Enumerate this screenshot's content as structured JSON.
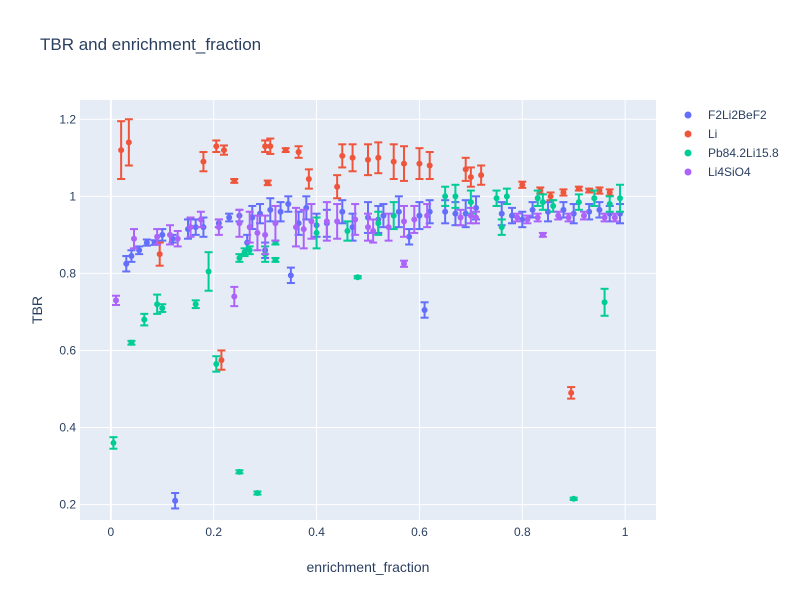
{
  "chart_data": {
    "type": "scatter",
    "title": "TBR and enrichment_fraction",
    "xlabel": "enrichment_fraction",
    "ylabel": "TBR",
    "xlim": [
      -0.06,
      1.06
    ],
    "ylim": [
      0.16,
      1.25
    ],
    "x_ticks": [
      0,
      0.2,
      0.4,
      0.6,
      0.8,
      1
    ],
    "x_tick_labels": [
      "0",
      "0.2",
      "0.4",
      "0.6",
      "0.8",
      "1"
    ],
    "y_ticks": [
      0.2,
      0.4,
      0.6,
      0.8,
      1.0,
      1.2
    ],
    "y_tick_labels": [
      "0.2",
      "0.4",
      "0.6",
      "0.8",
      "1",
      "1.2"
    ],
    "grid": true,
    "legend_position": "top-right",
    "error_bars": true,
    "series": [
      {
        "name": "F2Li2BeF2",
        "color": "#636efa",
        "points": [
          [
            0.03,
            0.825,
            0.02
          ],
          [
            0.04,
            0.845,
            0.015
          ],
          [
            0.055,
            0.86,
            0.01
          ],
          [
            0.07,
            0.88,
            0.008
          ],
          [
            0.085,
            0.88,
            0.006
          ],
          [
            0.1,
            0.9,
            0.015
          ],
          [
            0.12,
            0.89,
            0.01
          ],
          [
            0.125,
            0.21,
            0.02
          ],
          [
            0.15,
            0.915,
            0.025
          ],
          [
            0.165,
            0.92,
            0.02
          ],
          [
            0.18,
            0.92,
            0.025
          ],
          [
            0.21,
            0.93,
            0.01
          ],
          [
            0.23,
            0.945,
            0.01
          ],
          [
            0.25,
            0.95,
            0.015
          ],
          [
            0.265,
            0.88,
            0.02
          ],
          [
            0.275,
            0.945,
            0.03
          ],
          [
            0.29,
            0.955,
            0.025
          ],
          [
            0.3,
            0.86,
            0.02
          ],
          [
            0.31,
            0.965,
            0.03
          ],
          [
            0.33,
            0.96,
            0.025
          ],
          [
            0.345,
            0.98,
            0.02
          ],
          [
            0.35,
            0.795,
            0.02
          ],
          [
            0.365,
            0.93,
            0.03
          ],
          [
            0.38,
            0.97,
            0.03
          ],
          [
            0.4,
            0.925,
            0.03
          ],
          [
            0.42,
            0.93,
            0.035
          ],
          [
            0.45,
            0.96,
            0.03
          ],
          [
            0.47,
            0.92,
            0.035
          ],
          [
            0.5,
            0.945,
            0.04
          ],
          [
            0.52,
            0.94,
            0.035
          ],
          [
            0.53,
            0.95,
            0.03
          ],
          [
            0.56,
            0.96,
            0.04
          ],
          [
            0.58,
            0.895,
            0.02
          ],
          [
            0.6,
            0.95,
            0.035
          ],
          [
            0.61,
            0.705,
            0.02
          ],
          [
            0.62,
            0.96,
            0.03
          ],
          [
            0.65,
            0.96,
            0.03
          ],
          [
            0.67,
            0.955,
            0.03
          ],
          [
            0.69,
            0.955,
            0.035
          ],
          [
            0.71,
            0.97,
            0.03
          ],
          [
            0.76,
            0.955,
            0.03
          ],
          [
            0.78,
            0.95,
            0.02
          ],
          [
            0.8,
            0.94,
            0.02
          ],
          [
            0.82,
            0.965,
            0.02
          ],
          [
            0.85,
            0.96,
            0.025
          ],
          [
            0.88,
            0.965,
            0.02
          ],
          [
            0.9,
            0.955,
            0.025
          ],
          [
            0.93,
            0.96,
            0.02
          ],
          [
            0.95,
            0.965,
            0.02
          ],
          [
            0.97,
            0.955,
            0.02
          ],
          [
            0.99,
            0.955,
            0.025
          ]
        ]
      },
      {
        "name": "Li",
        "color": "#EF553B",
        "points": [
          [
            0.02,
            1.12,
            0.075
          ],
          [
            0.035,
            1.14,
            0.06
          ],
          [
            0.095,
            0.85,
            0.03
          ],
          [
            0.18,
            1.09,
            0.025
          ],
          [
            0.205,
            1.13,
            0.015
          ],
          [
            0.215,
            0.575,
            0.025
          ],
          [
            0.22,
            1.12,
            0.012
          ],
          [
            0.24,
            1.04,
            0.005
          ],
          [
            0.3,
            1.13,
            0.015
          ],
          [
            0.31,
            1.13,
            0.02
          ],
          [
            0.305,
            1.035,
            0.006
          ],
          [
            0.34,
            1.12,
            0.005
          ],
          [
            0.365,
            1.115,
            0.015
          ],
          [
            0.385,
            1.045,
            0.025
          ],
          [
            0.44,
            1.025,
            0.03
          ],
          [
            0.45,
            1.105,
            0.03
          ],
          [
            0.47,
            1.1,
            0.035
          ],
          [
            0.5,
            1.095,
            0.04
          ],
          [
            0.52,
            1.1,
            0.04
          ],
          [
            0.55,
            1.09,
            0.045
          ],
          [
            0.57,
            1.085,
            0.045
          ],
          [
            0.6,
            1.085,
            0.04
          ],
          [
            0.62,
            1.08,
            0.035
          ],
          [
            0.69,
            1.07,
            0.03
          ],
          [
            0.7,
            1.05,
            0.025
          ],
          [
            0.72,
            1.055,
            0.025
          ],
          [
            0.8,
            1.03,
            0.008
          ],
          [
            0.835,
            1.015,
            0.008
          ],
          [
            0.855,
            1.0,
            0.01
          ],
          [
            0.88,
            1.01,
            0.008
          ],
          [
            0.895,
            0.49,
            0.015
          ],
          [
            0.91,
            1.02,
            0.005
          ],
          [
            0.93,
            1.015,
            0.005
          ],
          [
            0.95,
            1.015,
            0.008
          ],
          [
            0.97,
            1.01,
            0.008
          ]
        ]
      },
      {
        "name": "Pb84.2Li15.8",
        "color": "#00cc96",
        "points": [
          [
            0.005,
            0.36,
            0.015
          ],
          [
            0.04,
            0.62,
            0.005
          ],
          [
            0.065,
            0.68,
            0.015
          ],
          [
            0.09,
            0.72,
            0.025
          ],
          [
            0.1,
            0.71,
            0.01
          ],
          [
            0.165,
            0.72,
            0.01
          ],
          [
            0.19,
            0.805,
            0.05
          ],
          [
            0.205,
            0.565,
            0.02
          ],
          [
            0.25,
            0.84,
            0.01
          ],
          [
            0.25,
            0.285,
            0.004
          ],
          [
            0.26,
            0.855,
            0.01
          ],
          [
            0.27,
            0.86,
            0.01
          ],
          [
            0.285,
            0.23,
            0.004
          ],
          [
            0.3,
            0.85,
            0.02
          ],
          [
            0.32,
            0.835,
            0.005
          ],
          [
            0.32,
            0.88,
            0.005
          ],
          [
            0.4,
            0.905,
            0.04
          ],
          [
            0.46,
            0.91,
            0.025
          ],
          [
            0.48,
            0.79,
            0.003
          ],
          [
            0.52,
            0.93,
            0.03
          ],
          [
            0.55,
            0.95,
            0.035
          ],
          [
            0.65,
            1.0,
            0.025
          ],
          [
            0.67,
            1.0,
            0.03
          ],
          [
            0.7,
            0.985,
            0.03
          ],
          [
            0.75,
            0.995,
            0.02
          ],
          [
            0.76,
            0.92,
            0.02
          ],
          [
            0.77,
            1.0,
            0.02
          ],
          [
            0.83,
            0.995,
            0.02
          ],
          [
            0.84,
            0.985,
            0.02
          ],
          [
            0.86,
            0.975,
            0.015
          ],
          [
            0.9,
            0.215,
            0.003
          ],
          [
            0.91,
            0.985,
            0.02
          ],
          [
            0.94,
            0.995,
            0.02
          ],
          [
            0.96,
            0.725,
            0.035
          ],
          [
            0.97,
            0.98,
            0.02
          ],
          [
            0.99,
            0.995,
            0.035
          ]
        ]
      },
      {
        "name": "Li4SiO4",
        "color": "#ab63fa",
        "points": [
          [
            0.01,
            0.73,
            0.012
          ],
          [
            0.045,
            0.89,
            0.025
          ],
          [
            0.09,
            0.895,
            0.02
          ],
          [
            0.115,
            0.9,
            0.025
          ],
          [
            0.13,
            0.89,
            0.02
          ],
          [
            0.155,
            0.92,
            0.025
          ],
          [
            0.175,
            0.94,
            0.02
          ],
          [
            0.21,
            0.92,
            0.02
          ],
          [
            0.24,
            0.74,
            0.025
          ],
          [
            0.25,
            0.93,
            0.035
          ],
          [
            0.27,
            0.92,
            0.04
          ],
          [
            0.285,
            0.905,
            0.045
          ],
          [
            0.3,
            0.9,
            0.05
          ],
          [
            0.32,
            0.93,
            0.045
          ],
          [
            0.36,
            0.92,
            0.05
          ],
          [
            0.375,
            0.915,
            0.05
          ],
          [
            0.39,
            0.935,
            0.045
          ],
          [
            0.42,
            0.935,
            0.05
          ],
          [
            0.44,
            0.935,
            0.045
          ],
          [
            0.475,
            0.94,
            0.04
          ],
          [
            0.5,
            0.92,
            0.035
          ],
          [
            0.51,
            0.91,
            0.03
          ],
          [
            0.54,
            0.92,
            0.035
          ],
          [
            0.57,
            0.935,
            0.04
          ],
          [
            0.57,
            0.825,
            0.008
          ],
          [
            0.59,
            0.94,
            0.035
          ],
          [
            0.615,
            0.95,
            0.03
          ],
          [
            0.68,
            0.945,
            0.02
          ],
          [
            0.7,
            0.95,
            0.02
          ],
          [
            0.71,
            0.945,
            0.015
          ],
          [
            0.79,
            0.945,
            0.01
          ],
          [
            0.81,
            0.94,
            0.01
          ],
          [
            0.83,
            0.945,
            0.01
          ],
          [
            0.84,
            0.9,
            0.005
          ],
          [
            0.87,
            0.95,
            0.01
          ],
          [
            0.89,
            0.945,
            0.01
          ],
          [
            0.92,
            0.95,
            0.01
          ],
          [
            0.96,
            0.945,
            0.01
          ],
          [
            0.98,
            0.945,
            0.01
          ]
        ]
      }
    ]
  }
}
